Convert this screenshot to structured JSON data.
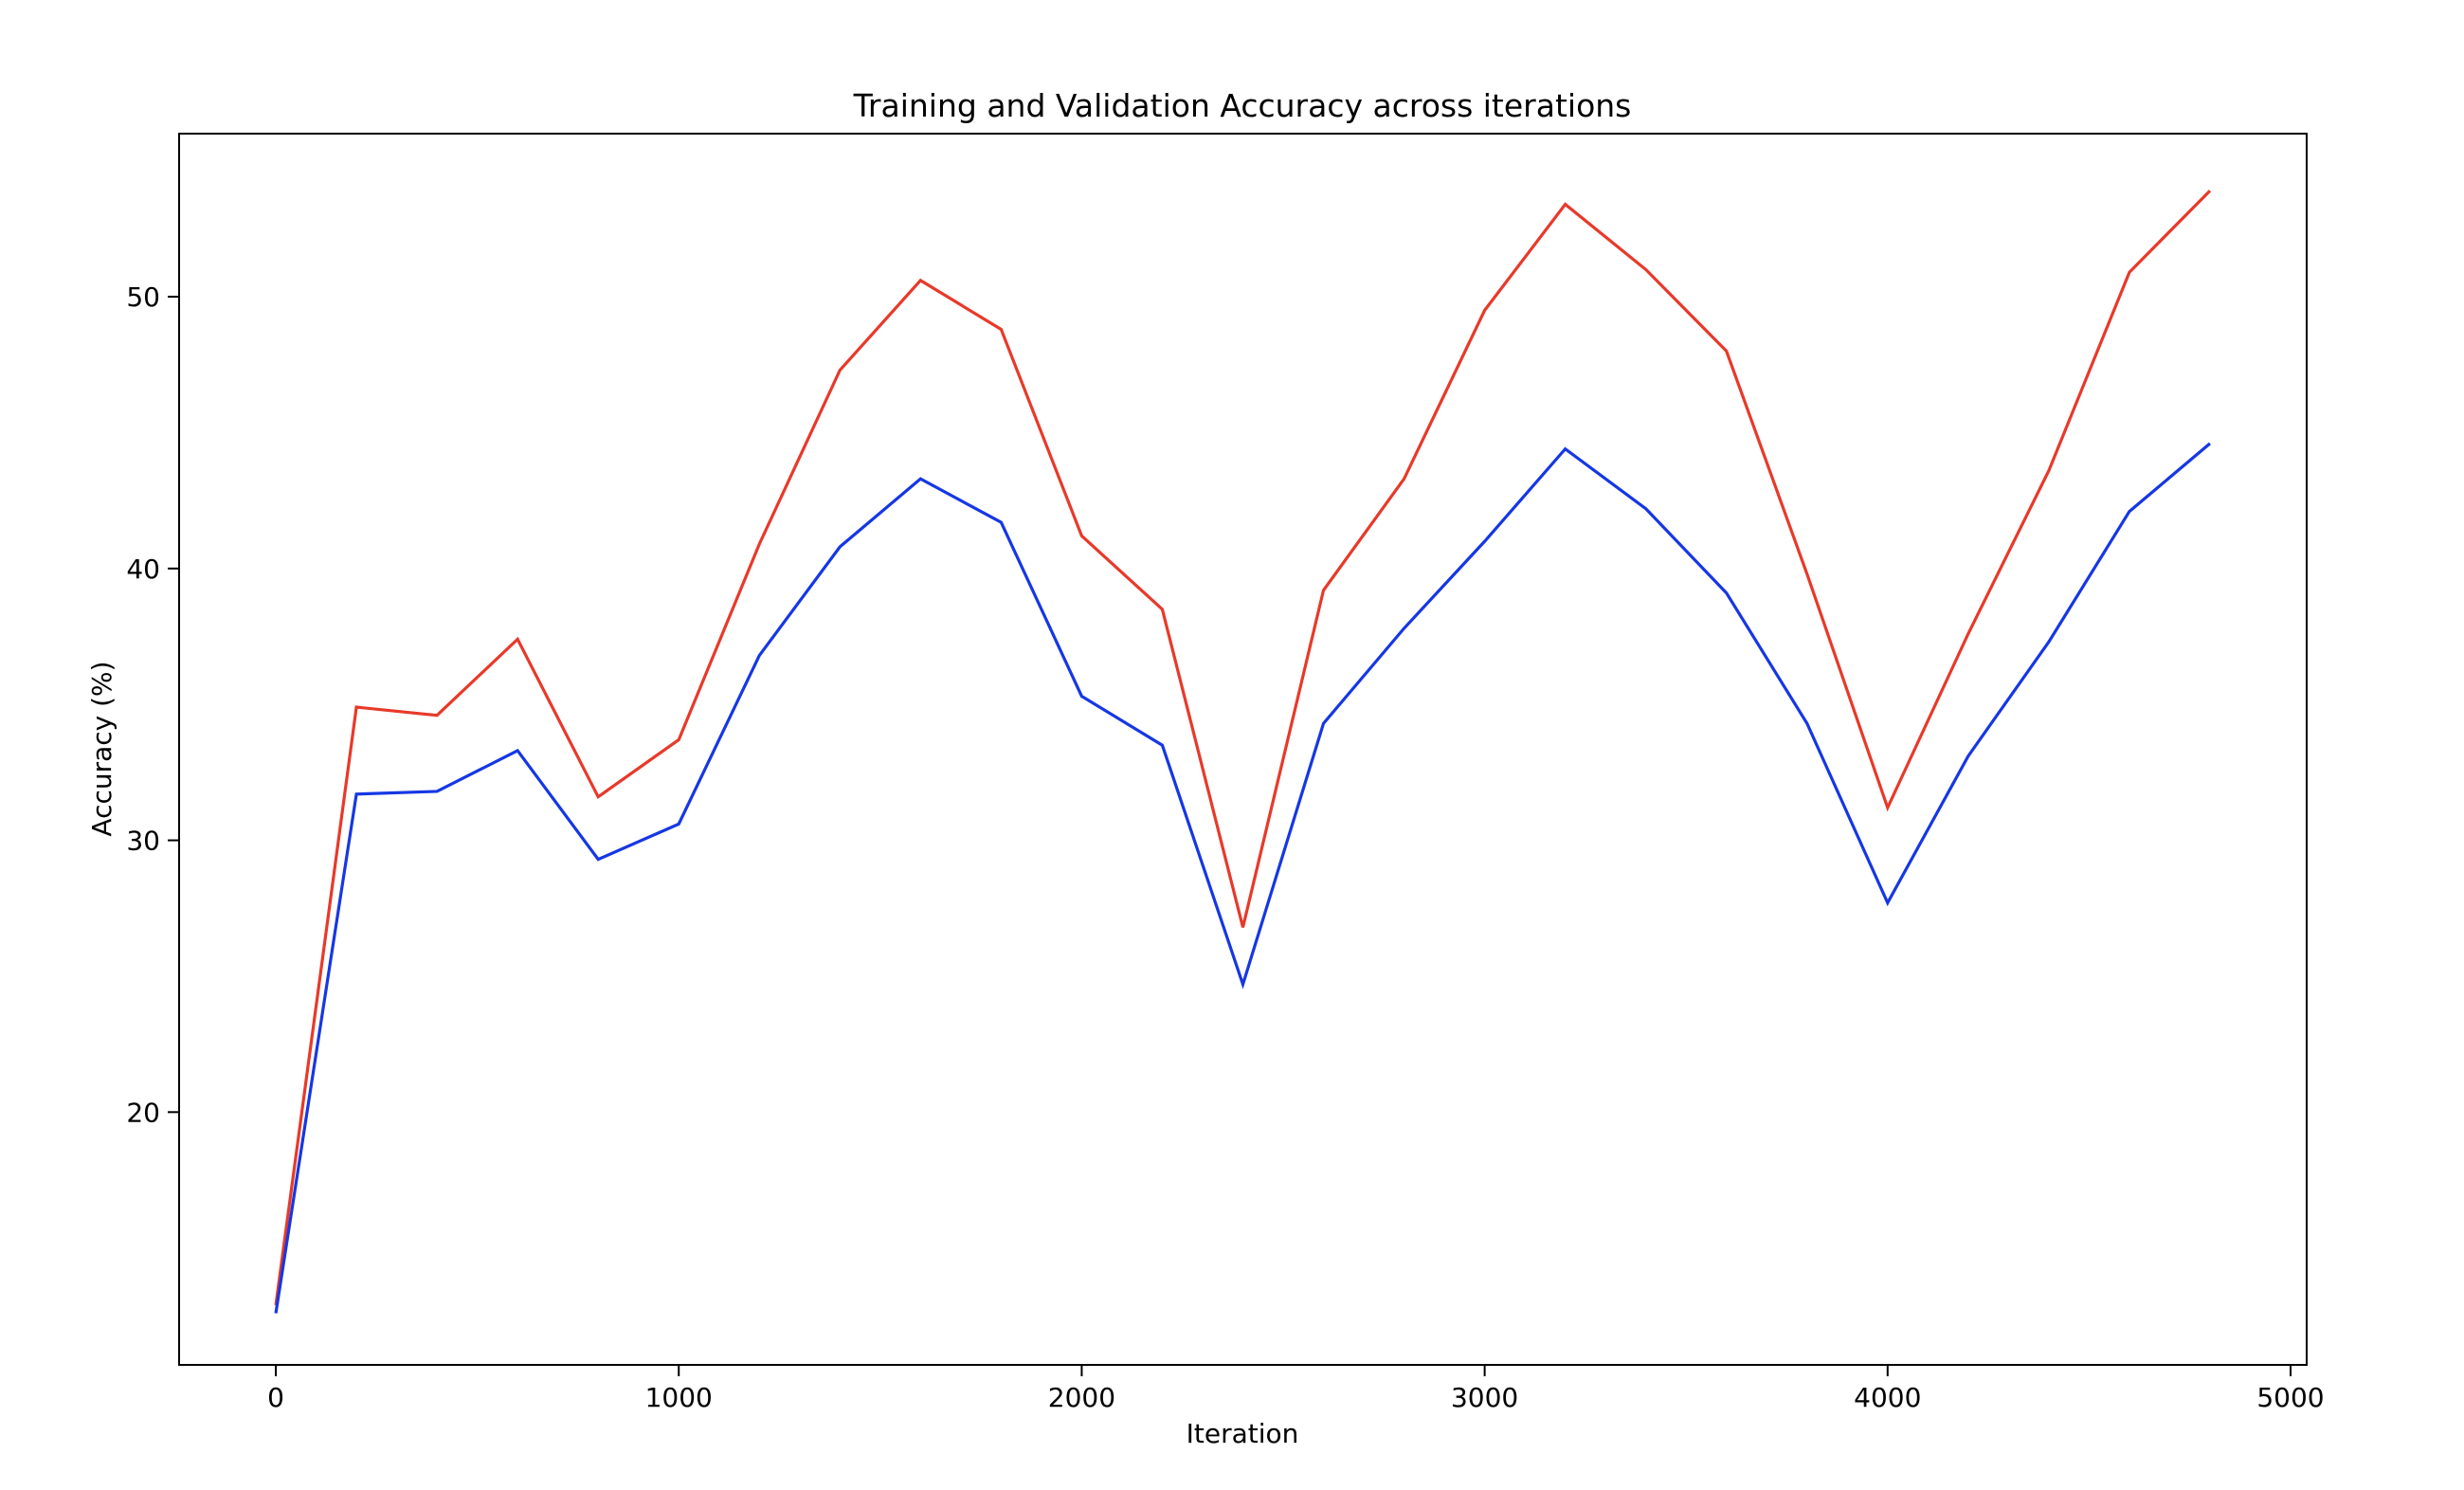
{
  "chart_data": {
    "type": "line",
    "title": "Training and Validation Accuracy across iterations",
    "xlabel": "Iteration",
    "ylabel": "Accuracy (%)",
    "xlim": [
      -240,
      5040
    ],
    "ylim": [
      10.7,
      56.0
    ],
    "xticks": [
      0,
      1000,
      2000,
      3000,
      4000,
      5000
    ],
    "yticks": [
      20,
      30,
      40,
      50
    ],
    "grid": false,
    "legend": "none",
    "x": [
      0,
      200,
      400,
      600,
      800,
      1000,
      1200,
      1400,
      1600,
      1800,
      2000,
      2200,
      2400,
      2600,
      2800,
      3000,
      3200,
      3400,
      3600,
      3800,
      4000,
      4200,
      4400,
      4600,
      4800
    ],
    "series": [
      {
        "color": "#e8392a",
        "values": [
          12.9,
          34.9,
          34.6,
          37.4,
          31.6,
          33.7,
          40.9,
          47.3,
          50.6,
          48.8,
          41.2,
          38.5,
          26.8,
          39.2,
          43.3,
          49.5,
          53.4,
          51.0,
          48.0,
          39.8,
          31.2,
          37.6,
          43.6,
          50.9,
          53.9
        ]
      },
      {
        "color": "#1637e4",
        "values": [
          12.6,
          31.7,
          31.8,
          33.3,
          29.3,
          30.6,
          36.8,
          40.8,
          43.3,
          41.7,
          35.3,
          33.5,
          24.7,
          34.3,
          37.8,
          41.0,
          44.4,
          42.2,
          39.1,
          34.3,
          27.7,
          33.1,
          37.3,
          42.1,
          44.6
        ]
      }
    ]
  }
}
